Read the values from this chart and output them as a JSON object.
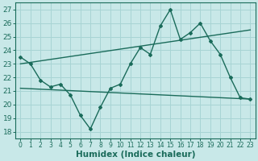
{
  "bg_color": "#c8e8e8",
  "grid_color": "#a8d4d4",
  "line_color": "#1a6b5a",
  "xlabel": "Humidex (Indice chaleur)",
  "xlim": [
    -0.5,
    23.5
  ],
  "ylim": [
    17.5,
    27.5
  ],
  "yticks": [
    18,
    19,
    20,
    21,
    22,
    23,
    24,
    25,
    26,
    27
  ],
  "xticks": [
    0,
    1,
    2,
    3,
    4,
    5,
    6,
    7,
    8,
    9,
    10,
    11,
    12,
    13,
    14,
    15,
    16,
    17,
    18,
    19,
    20,
    21,
    22,
    23
  ],
  "line1_x": [
    0,
    1,
    2,
    3,
    4,
    5,
    6,
    7,
    8,
    9,
    10,
    11,
    12,
    13,
    14,
    15,
    16,
    17,
    18,
    19,
    20,
    21,
    22,
    23
  ],
  "line1_y": [
    23.5,
    23.0,
    21.8,
    21.3,
    21.5,
    20.7,
    19.2,
    18.2,
    19.8,
    21.2,
    21.5,
    23.0,
    24.2,
    23.7,
    25.8,
    27.0,
    24.8,
    25.3,
    26.0,
    24.7,
    23.7,
    22.0,
    20.5,
    20.4
  ],
  "line2_x": [
    0,
    23
  ],
  "line2_y": [
    23.0,
    25.5
  ],
  "line3_x": [
    0,
    23
  ],
  "line3_y": [
    21.2,
    20.4
  ],
  "xtick_fontsize": 5.5,
  "ytick_fontsize": 6.5,
  "label_fontsize": 7.5
}
